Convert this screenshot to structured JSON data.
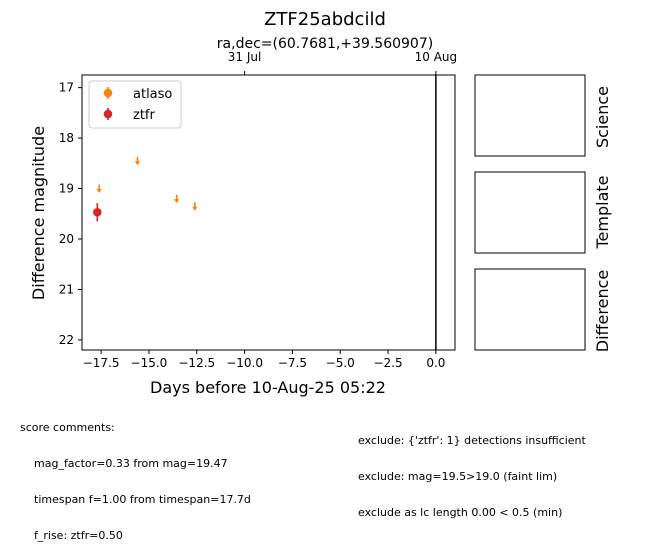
{
  "chart_data": {
    "type": "scatter",
    "title": "ZTF25abdcild",
    "subtitle": "ra,dec=(60.7681,+39.560907)",
    "xlabel": "Days before 10-Aug-25 05:22",
    "ylabel": "Difference magnitude",
    "xlim": [
      -18.5,
      1.0
    ],
    "ylim": [
      22.2,
      16.75
    ],
    "y_inverted": true,
    "x_ticks": [
      -17.5,
      -15.0,
      -12.5,
      -10.0,
      -7.5,
      -5.0,
      -2.5,
      0.0
    ],
    "x_tick_labels": [
      "−17.5",
      "−15.0",
      "−12.5",
      "−10.0",
      "−7.5",
      "−5.0",
      "−2.5",
      "0.0"
    ],
    "y_ticks": [
      17,
      18,
      19,
      20,
      21,
      22
    ],
    "y_tick_labels": [
      "17",
      "18",
      "19",
      "20",
      "21",
      "22"
    ],
    "top_axis_ticks": [
      {
        "x": -10.0,
        "label": "31 Jul"
      },
      {
        "x": 0.0,
        "label": "10 Aug"
      }
    ],
    "vertical_line_x": 0.0,
    "legend_position": "top-left",
    "series": [
      {
        "name": "atlaso",
        "color": "#ff7f0e",
        "marker": "upper-limit-arrow",
        "x": [
          -17.6,
          -15.6,
          -13.55,
          -12.6
        ],
        "y": [
          19.0,
          18.45,
          19.2,
          19.35
        ]
      },
      {
        "name": "ztfr",
        "color": "#d62728",
        "marker": "circle-errorbar",
        "x": [
          -17.7
        ],
        "y": [
          19.47
        ],
        "yerr": [
          0.18
        ]
      }
    ]
  },
  "cutout_labels": [
    "Science",
    "Template",
    "Difference"
  ],
  "score_comments": {
    "header": "score comments:",
    "lines": [
      "mag_factor=0.33 from mag=19.47",
      "timespan f=1.00 from timespan=17.7d",
      "f_rise: ztfr=0.50"
    ]
  },
  "exclude_comments": [
    "exclude: {'ztfr': 1} detections insufficient",
    "exclude: mag=19.5>19.0 (faint lim)",
    "exclude as lc length 0.00 < 0.5 (min)"
  ]
}
